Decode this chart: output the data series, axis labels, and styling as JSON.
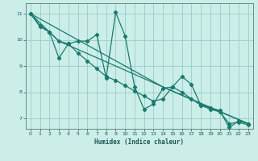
{
  "title": "",
  "xlabel": "Humidex (Indice chaleur)",
  "ylabel": "",
  "bg_color": "#cceee8",
  "grid_color": "#99cccc",
  "line_color": "#1a7a6e",
  "xlim": [
    -0.5,
    23.5
  ],
  "ylim": [
    6.6,
    11.4
  ],
  "xticks": [
    0,
    1,
    2,
    3,
    4,
    5,
    6,
    7,
    8,
    9,
    10,
    11,
    12,
    13,
    14,
    15,
    16,
    17,
    18,
    19,
    20,
    21,
    22,
    23
  ],
  "yticks": [
    7,
    8,
    9,
    10,
    11
  ],
  "line1_x": [
    0,
    1,
    2,
    3,
    4,
    5,
    6,
    7,
    8,
    9,
    10,
    11,
    12,
    13,
    14,
    15,
    16,
    17,
    18,
    19,
    20,
    21,
    22,
    23
  ],
  "line1_y": [
    11.0,
    10.5,
    10.3,
    9.3,
    9.85,
    9.95,
    9.95,
    10.2,
    8.55,
    11.05,
    10.15,
    8.2,
    7.35,
    7.55,
    8.15,
    8.2,
    8.6,
    8.3,
    7.5,
    7.4,
    7.3,
    6.65,
    6.9,
    6.8
  ],
  "line2_x": [
    0,
    1,
    2,
    3,
    4,
    5,
    6,
    7,
    8,
    9,
    10,
    11,
    12,
    13,
    14,
    15,
    16,
    17,
    18,
    19,
    20,
    21,
    22,
    23
  ],
  "line2_y": [
    11.0,
    10.55,
    10.3,
    9.95,
    9.85,
    9.5,
    9.2,
    8.9,
    8.6,
    8.45,
    8.25,
    8.05,
    7.85,
    7.65,
    7.75,
    8.2,
    8.0,
    7.75,
    7.5,
    7.35,
    7.25,
    6.8,
    6.85,
    6.75
  ],
  "line3_x": [
    0,
    3,
    9,
    14,
    19,
    23
  ],
  "line3_y": [
    11.0,
    9.95,
    9.0,
    8.2,
    7.4,
    6.8
  ],
  "line4_x": [
    0,
    14,
    23
  ],
  "line4_y": [
    11.0,
    8.2,
    6.8
  ]
}
